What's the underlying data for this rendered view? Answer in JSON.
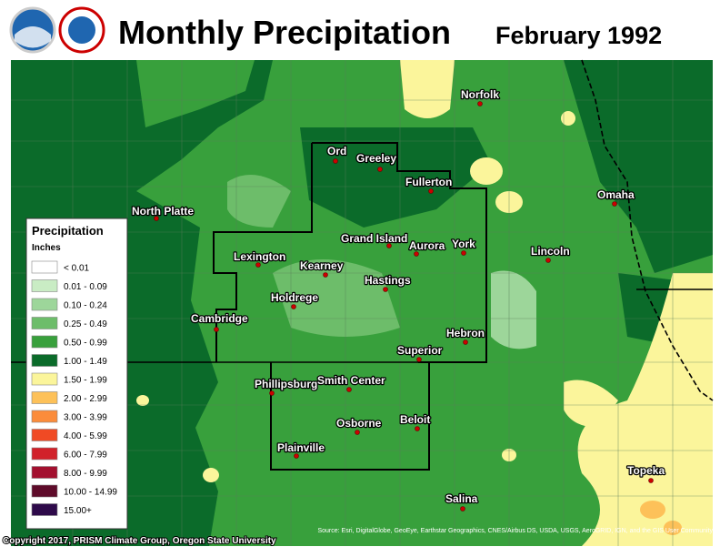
{
  "header": {
    "title": "Monthly Precipitation",
    "date": "February 1992"
  },
  "legend": {
    "title": "Precipitation",
    "units": "Inches",
    "items": [
      {
        "label": "< 0.01",
        "color": "#ffffff"
      },
      {
        "label": "0.01 - 0.09",
        "color": "#c9ecc4"
      },
      {
        "label": "0.10 - 0.24",
        "color": "#9dd69a"
      },
      {
        "label": "0.25 - 0.49",
        "color": "#6dbd6a"
      },
      {
        "label": "0.50 - 0.99",
        "color": "#38a03c"
      },
      {
        "label": "1.00 - 1.49",
        "color": "#0b6b2a"
      },
      {
        "label": "1.50 - 1.99",
        "color": "#fbf59b"
      },
      {
        "label": "2.00 - 2.99",
        "color": "#fdc159"
      },
      {
        "label": "3.00 - 3.99",
        "color": "#fb8c3b"
      },
      {
        "label": "4.00 - 5.99",
        "color": "#f04a24"
      },
      {
        "label": "6.00 - 7.99",
        "color": "#d1212a"
      },
      {
        "label": "8.00 - 9.99",
        "color": "#a3102f"
      },
      {
        "label": "10.00 - 14.99",
        "color": "#5e0b2a"
      },
      {
        "label": "15.00+",
        "color": "#2e0a4a"
      }
    ]
  },
  "cities": [
    "Norfolk",
    "North Platte",
    "Ord",
    "Greeley",
    "Fullerton",
    "Omaha",
    "Grand Island",
    "Aurora",
    "York",
    "Lincoln",
    "Lexington",
    "Kearney",
    "Hastings",
    "Holdrege",
    "Cambridge",
    "Hebron",
    "Superior",
    "Phillipsburg",
    "Smith Center",
    "Beloit",
    "Osborne",
    "Plainville",
    "Topeka",
    "Salina"
  ],
  "footer": {
    "copyright": "Copyright 2017, PRISM Climate Group, Oregon State University",
    "source": "Source: Esri, DigitalGlobe, GeoEye, Earthstar Geographics, CNES/Airbus DS, USDA, USGS, AeroGRID, IGN, and the GIS User Community"
  }
}
